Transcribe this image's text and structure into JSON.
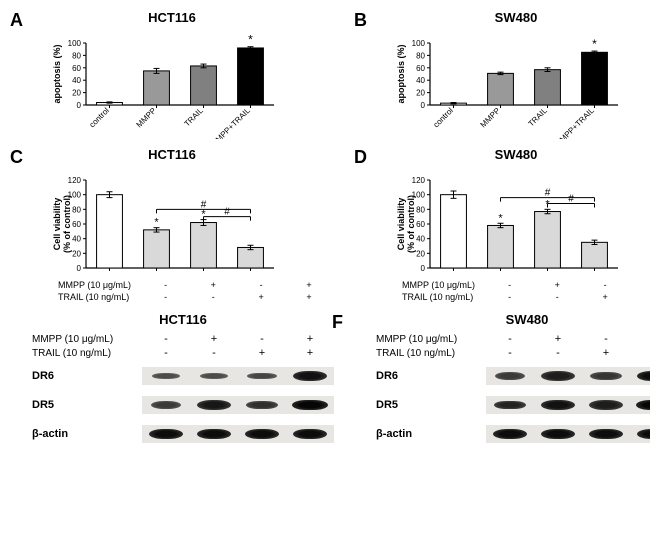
{
  "panelA": {
    "label": "A",
    "title": "HCT116",
    "chart": {
      "type": "bar",
      "ylabel": "apoptosis (%)",
      "ylim": [
        0,
        100
      ],
      "ytick_step": 20,
      "categories": [
        "control",
        "MMPP",
        "TRAIL",
        "MMPP+TRAIL"
      ],
      "values": [
        4,
        55,
        63,
        92
      ],
      "errors": [
        1,
        4,
        3,
        2
      ],
      "bar_colors": [
        "#ffffff",
        "#999999",
        "#808080",
        "#000000"
      ],
      "annotations": {
        "3": "*"
      },
      "bar_width": 0.55,
      "label_fontsize": 9,
      "tick_fontsize": 8,
      "rotate_xlabels": 45,
      "axis_color": "#000000",
      "background": "#ffffff"
    }
  },
  "panelB": {
    "label": "B",
    "title": "SW480",
    "chart": {
      "type": "bar",
      "ylabel": "apoptosis (%)",
      "ylim": [
        0,
        100
      ],
      "ytick_step": 20,
      "categories": [
        "control",
        "MMPP",
        "TRAIL",
        "MMPP+TRAIL"
      ],
      "values": [
        3,
        51,
        57,
        85
      ],
      "errors": [
        1,
        2,
        3,
        2
      ],
      "bar_colors": [
        "#ffffff",
        "#999999",
        "#808080",
        "#000000"
      ],
      "annotations": {
        "3": "*"
      },
      "bar_width": 0.55,
      "label_fontsize": 9,
      "tick_fontsize": 8,
      "rotate_xlabels": 45,
      "axis_color": "#000000",
      "background": "#ffffff"
    }
  },
  "panelC": {
    "label": "C",
    "title": "HCT116",
    "chart": {
      "type": "bar",
      "ylabel": "Cell viability\n(% of control)",
      "ylim": [
        0,
        120
      ],
      "ytick_step": 20,
      "values": [
        100,
        52,
        62,
        28
      ],
      "errors": [
        4,
        3,
        4,
        3
      ],
      "bar_colors": [
        "#ffffff",
        "#d9d9d9",
        "#d9d9d9",
        "#d9d9d9"
      ],
      "annotations_star": {
        "1": "*",
        "2": "*"
      },
      "brackets": [
        {
          "from": 1,
          "to": 3,
          "label": "#",
          "y": 80
        },
        {
          "from": 2,
          "to": 3,
          "label": "#",
          "y": 70
        }
      ],
      "bar_width": 0.55,
      "label_fontsize": 9,
      "tick_fontsize": 8,
      "axis_color": "#000000",
      "background": "#ffffff"
    },
    "conditions": [
      {
        "label": "MMPP (10 μg/mL)",
        "cells": [
          "-",
          "+",
          "-",
          "+"
        ]
      },
      {
        "label": "TRAIL (10 ng/mL)",
        "cells": [
          "-",
          "-",
          "+",
          "+"
        ]
      }
    ]
  },
  "panelD": {
    "label": "D",
    "title": "SW480",
    "chart": {
      "type": "bar",
      "ylabel": "Cell viability\n(% of control)",
      "ylim": [
        0,
        120
      ],
      "ytick_step": 20,
      "values": [
        100,
        58,
        77,
        35
      ],
      "errors": [
        5,
        3,
        3,
        3
      ],
      "bar_colors": [
        "#ffffff",
        "#d9d9d9",
        "#d9d9d9",
        "#d9d9d9"
      ],
      "annotations_star": {
        "1": "*",
        "2": "*"
      },
      "brackets": [
        {
          "from": 1,
          "to": 3,
          "label": "#",
          "y": 96
        },
        {
          "from": 2,
          "to": 3,
          "label": "#",
          "y": 88
        }
      ],
      "bar_width": 0.55,
      "label_fontsize": 9,
      "tick_fontsize": 8,
      "axis_color": "#000000",
      "background": "#ffffff"
    },
    "conditions": [
      {
        "label": "MMPP (10 μg/mL)",
        "cells": [
          "-",
          "+",
          "-",
          "+"
        ]
      },
      {
        "label": "TRAIL (10 ng/mL)",
        "cells": [
          "-",
          "-",
          "+",
          "+"
        ]
      }
    ]
  },
  "panelE": {
    "label": "E",
    "title": "HCT116",
    "header": [
      {
        "label": "MMPP (10 μg/mL)",
        "cells": [
          "-",
          "+",
          "-",
          "+"
        ]
      },
      {
        "label": "TRAIL (10 ng/mL)",
        "cells": [
          "-",
          "-",
          "+",
          "+"
        ]
      }
    ],
    "blots": [
      {
        "name": "DR6",
        "intensities": [
          0.35,
          0.35,
          0.4,
          0.85
        ]
      },
      {
        "name": "DR5",
        "intensities": [
          0.5,
          0.8,
          0.6,
          0.95
        ]
      },
      {
        "name": "β-actin",
        "intensities": [
          0.9,
          0.9,
          0.9,
          0.9
        ]
      }
    ],
    "band_base_width": 36,
    "band_base_height": 10,
    "strip_bg": "#e8e6e2"
  },
  "panelF": {
    "label": "F",
    "title": "SW480",
    "header": [
      {
        "label": "MMPP (10 μg/mL)",
        "cells": [
          "-",
          "+",
          "-",
          "+"
        ]
      },
      {
        "label": "TRAIL (10 ng/mL)",
        "cells": [
          "-",
          "-",
          "+",
          "+"
        ]
      }
    ],
    "blots": [
      {
        "name": "DR6",
        "intensities": [
          0.5,
          0.75,
          0.55,
          0.9
        ]
      },
      {
        "name": "DR5",
        "intensities": [
          0.7,
          0.85,
          0.75,
          0.95
        ]
      },
      {
        "name": "β-actin",
        "intensities": [
          0.9,
          0.9,
          0.9,
          0.9
        ]
      }
    ],
    "band_base_width": 36,
    "band_base_height": 10,
    "strip_bg": "#e8e6e2"
  }
}
